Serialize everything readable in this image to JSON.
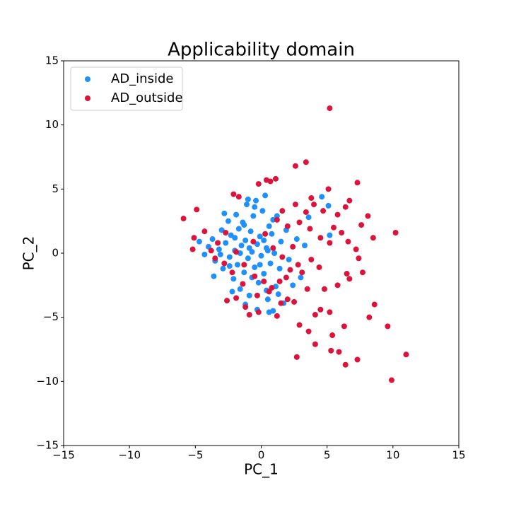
{
  "chart_data": {
    "type": "scatter",
    "title": "Applicability domain",
    "x_label": "PC_1",
    "y_label": "PC_2",
    "xlim": [
      -15,
      15
    ],
    "ylim": [
      -15,
      15
    ],
    "xticks": [
      {
        "value": -15,
        "label": "−15"
      },
      {
        "value": -10,
        "label": "−10"
      },
      {
        "value": -5,
        "label": "−5"
      },
      0,
      5,
      10,
      15
    ],
    "yticks": [
      {
        "value": -15,
        "label": "−15"
      },
      {
        "value": -10,
        "label": "−10"
      },
      {
        "value": -5,
        "label": "−5"
      },
      0,
      5,
      10,
      15
    ],
    "legend": "upper left",
    "series": [
      {
        "name": "AD_inside",
        "color": "#1e90ff",
        "x": [
          -4.3,
          -4.0,
          -3.7,
          -3.5,
          -3.2,
          -3.0,
          -2.9,
          -2.7,
          -2.5,
          -2.4,
          -2.3,
          -2.1,
          -2.0,
          -1.9,
          -1.8,
          -1.7,
          -1.6,
          -1.5,
          -1.4,
          -1.3,
          -1.2,
          -1.1,
          -1.0,
          -0.9,
          -0.8,
          -0.7,
          -0.6,
          -0.5,
          -0.4,
          -0.3,
          -0.2,
          -0.1,
          0.0,
          0.1,
          0.2,
          0.3,
          0.4,
          0.5,
          0.6,
          0.7,
          0.8,
          0.9,
          1.0,
          1.1,
          1.2,
          1.4,
          1.5,
          1.7,
          1.9,
          2.1,
          2.4,
          2.7,
          3.0,
          3.3,
          3.6,
          5.1,
          5.2,
          4.6,
          -1.2,
          -0.3,
          0.6,
          -2.2,
          -3.6,
          -4.7,
          -2.8,
          -1.0,
          -0.5,
          0.4,
          -1.6,
          -0.9,
          -2.4,
          -1.3,
          0.2,
          -0.7,
          0.9,
          1.3,
          -3.1,
          -2.0,
          -0.1,
          0.5
        ],
        "y": [
          -0.1,
          0.5,
          1.1,
          -0.6,
          0.3,
          1.8,
          -1.2,
          0.8,
          2.5,
          -0.3,
          1.4,
          -2.0,
          0.2,
          3.0,
          -0.9,
          1.9,
          -2.8,
          0.6,
          2.4,
          -1.5,
          1.0,
          3.8,
          -0.4,
          -3.3,
          1.7,
          0.1,
          2.9,
          -1.1,
          4.1,
          0.7,
          -2.3,
          1.3,
          -0.2,
          3.3,
          -1.6,
          4.5,
          0.4,
          -3.6,
          2.1,
          -0.8,
          1.5,
          -4.5,
          0.0,
          -2.6,
          2.9,
          -1.2,
          0.9,
          -3.9,
          1.8,
          -0.5,
          -2.5,
          1.1,
          -1.9,
          0.6,
          2.8,
          3.7,
          1.4,
          4.4,
          -4.0,
          -4.4,
          -4.6,
          -3.0,
          -1.8,
          0.9,
          3.1,
          4.2,
          3.6,
          -2.9,
          0.0,
          0.4,
          -1.0,
          2.2,
          1.0,
          -1.9,
          2.6,
          -3.2,
          -0.1,
          1.2,
          -0.9,
          0.2
        ]
      },
      {
        "name": "AD_outside",
        "color": "#dc143c",
        "x": [
          5.2,
          -5.9,
          11.0,
          9.9,
          10.2,
          8.6,
          9.6,
          7.3,
          6.4,
          5.3,
          5.9,
          4.1,
          2.7,
          3.6,
          2.9,
          5.4,
          6.3,
          8.2,
          7.7,
          6.5,
          6.7,
          5.8,
          4.8,
          4.1,
          5.2,
          4.5,
          3.5,
          2.5,
          2.0,
          1.5,
          1.2,
          -0.9,
          -0.2,
          -1.2,
          3.4,
          2.6,
          1.1,
          7.3,
          6.7,
          5.1,
          3.8,
          4.0,
          -2.1,
          -1.7,
          0.4,
          0.7,
          -0.2,
          8.1,
          8.5,
          7.6,
          6.4,
          5.8,
          6.1,
          6.6,
          5.2,
          4.5,
          3.7,
          2.9,
          2.0,
          1.2,
          1.6,
          2.6,
          3.4,
          4.7,
          5.5,
          3.8,
          2.8,
          2.2,
          3.1,
          4.4,
          1.4,
          0.8,
          0.2,
          -0.5,
          -1.4,
          -2.2,
          -2.8,
          -3.5,
          -3.8,
          -4.3,
          -5.1,
          -5.2,
          -4.9,
          -3.3,
          -2.7,
          -1.9,
          -1.3,
          -0.6,
          0.3,
          0.9,
          1.6,
          2.4,
          1.9,
          -2.6,
          -1.9,
          -0.3,
          0.6,
          7.2,
          7.4
        ],
        "y": [
          11.3,
          2.7,
          -7.9,
          -9.9,
          1.6,
          -4.0,
          -5.7,
          -8.3,
          -8.7,
          -7.6,
          -7.7,
          -7.1,
          -8.1,
          -6.1,
          -5.6,
          -6.4,
          -5.7,
          -5.0,
          -1.5,
          -1.6,
          -2.0,
          -2.5,
          -2.8,
          -4.8,
          -4.6,
          -4.4,
          -2.8,
          -3.8,
          -3.6,
          -3.9,
          -4.9,
          -4.8,
          -4.6,
          -4.2,
          7.1,
          6.8,
          5.8,
          5.5,
          4.1,
          5.0,
          4.3,
          3.8,
          4.6,
          4.4,
          5.7,
          5.6,
          5.4,
          2.9,
          1.2,
          2.2,
          3.6,
          3.0,
          1.6,
          0.9,
          0.8,
          1.2,
          1.9,
          2.4,
          2.1,
          2.6,
          3.3,
          3.8,
          3.2,
          3.3,
          2.0,
          -0.5,
          -0.9,
          -1.3,
          -1.5,
          -1.1,
          -2.2,
          -2.7,
          -2.2,
          -1.8,
          -2.4,
          -1.5,
          -0.8,
          -0.4,
          0.2,
          1.7,
          1.2,
          0.3,
          3.4,
          0.8,
          1.6,
          0.1,
          -0.9,
          0.9,
          1.5,
          0.4,
          -0.3,
          0.5,
          -1.9,
          -3.7,
          -3.5,
          -3.3,
          -3.0,
          0.3,
          -0.4
        ]
      }
    ]
  }
}
